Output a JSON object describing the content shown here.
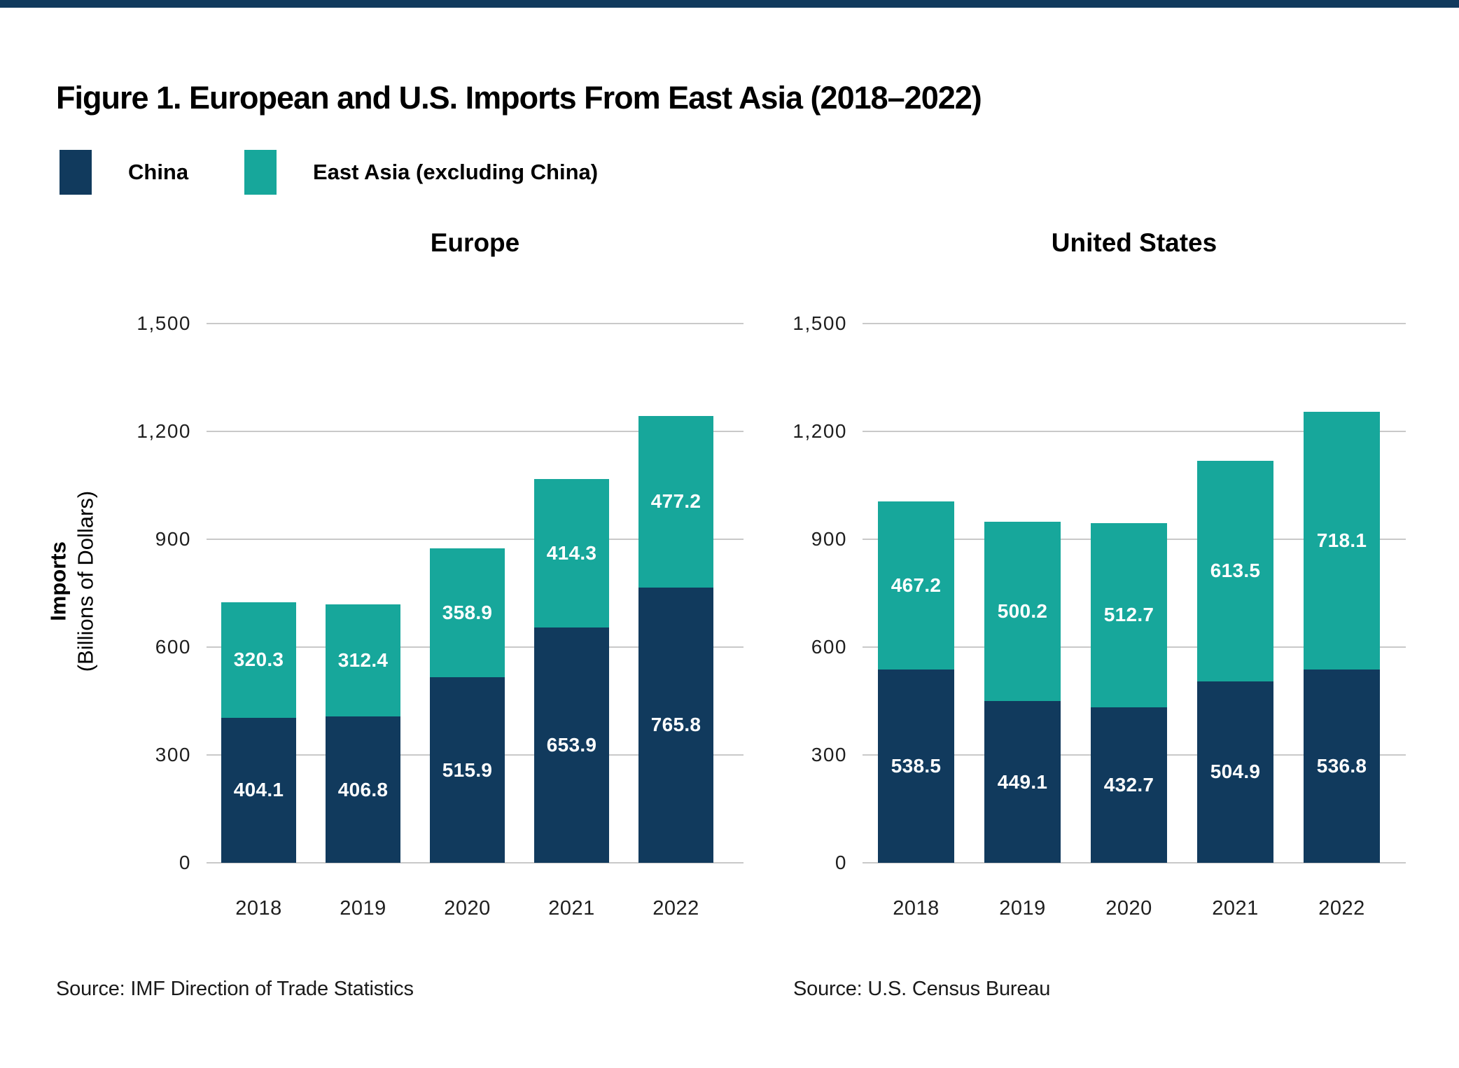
{
  "accent": {
    "top_bar_color": "#113A5D"
  },
  "figure": {
    "title": "Figure 1. European and U.S. Imports From East Asia (2018–2022)"
  },
  "legend": {
    "items": [
      {
        "label": "China",
        "color": "#113A5D"
      },
      {
        "label": "East Asia (excluding China)",
        "color": "#17A79B"
      }
    ]
  },
  "y_axis": {
    "title_bold": "Imports",
    "title_rest": "(Billions of Dollars)",
    "tick_labels": [
      "1,500",
      "1,200",
      "900",
      "600",
      "300",
      "0"
    ]
  },
  "chart_data": [
    {
      "type": "bar",
      "stacked": true,
      "title": "Europe",
      "categories": [
        "2018",
        "2019",
        "2020",
        "2021",
        "2022"
      ],
      "series": [
        {
          "name": "China",
          "color": "#113A5D",
          "values": [
            404.1,
            406.8,
            515.9,
            653.9,
            765.8
          ]
        },
        {
          "name": "East Asia (excluding China)",
          "color": "#17A79B",
          "values": [
            320.3,
            312.4,
            358.9,
            414.3,
            477.2
          ]
        }
      ],
      "ylabel": "Imports (Billions of Dollars)",
      "ylim": [
        0,
        1500
      ],
      "yticks": [
        0,
        300,
        600,
        900,
        1200,
        1500
      ],
      "grid": true,
      "value_labels": "inside-center-white",
      "legend_position": "top-left",
      "source": "Source: IMF Direction of Trade Statistics"
    },
    {
      "type": "bar",
      "stacked": true,
      "title": "United States",
      "categories": [
        "2018",
        "2019",
        "2020",
        "2021",
        "2022"
      ],
      "series": [
        {
          "name": "China",
          "color": "#113A5D",
          "values": [
            538.5,
            449.1,
            432.7,
            504.9,
            536.8
          ]
        },
        {
          "name": "East Asia (excluding China)",
          "color": "#17A79B",
          "values": [
            467.2,
            500.2,
            512.7,
            613.5,
            718.1
          ]
        }
      ],
      "ylabel": "Imports (Billions of Dollars)",
      "ylim": [
        0,
        1500
      ],
      "yticks": [
        0,
        300,
        600,
        900,
        1200,
        1500
      ],
      "grid": true,
      "value_labels": "inside-center-white",
      "source": "Source: U.S. Census Bureau"
    }
  ]
}
